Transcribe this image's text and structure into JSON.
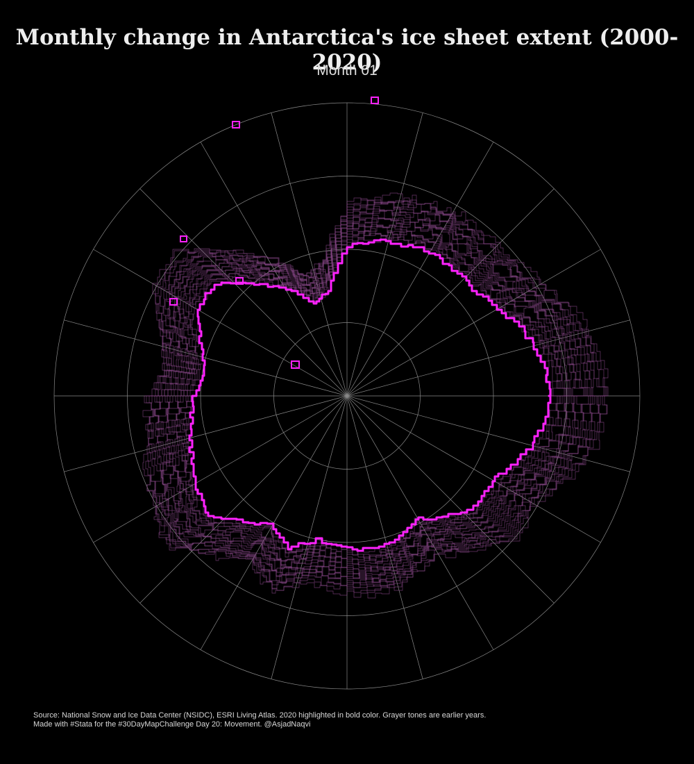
{
  "title": "Monthly change in Antarctica's ice sheet extent (2000-2020)",
  "subtitle": "Month 01",
  "footer": {
    "line1": "Source: National Snow and Ice Data Center (NSIDC), ESRI Living Atlas. 2020 highlighted in bold color. Grayer tones are earlier years.",
    "line2": "Made with #Stata for the #30DayMapChallenge Day 20: Movement. @AsjadNaqvi"
  },
  "colors": {
    "background": "#000000",
    "graticule": "#8a8a8a",
    "highlight_2020": "#ff22ff",
    "earlier_years": "#8c4a8c"
  },
  "map": {
    "projection": "south-polar-stereographic",
    "graticule": {
      "parallel_rings": 4,
      "meridians": 24
    },
    "highlight_year": "2020",
    "years_range": "2000-2020"
  }
}
